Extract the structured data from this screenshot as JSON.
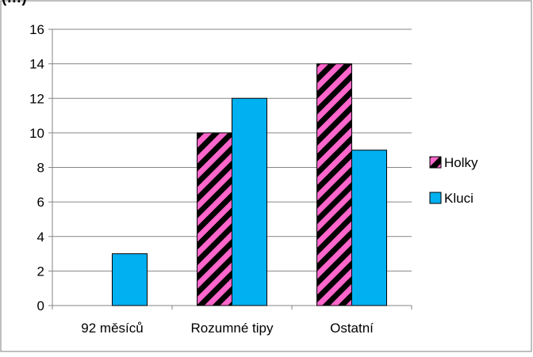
{
  "chart_data": {
    "type": "bar",
    "title": "(…)",
    "categories": [
      "92 měsíců",
      "Rozumné tipy",
      "Ostatní"
    ],
    "series": [
      {
        "name": "Holky",
        "values": [
          0,
          10,
          14
        ],
        "color": "#ff66cc",
        "pattern": "diagonal-stripes-black"
      },
      {
        "name": "Kluci",
        "values": [
          3,
          12,
          9
        ],
        "color": "#00b0f0",
        "pattern": "solid"
      }
    ],
    "ylim": [
      0,
      16
    ],
    "yticks": [
      0,
      2,
      4,
      6,
      8,
      10,
      12,
      14,
      16
    ],
    "grid": true,
    "legend_position": "right"
  }
}
